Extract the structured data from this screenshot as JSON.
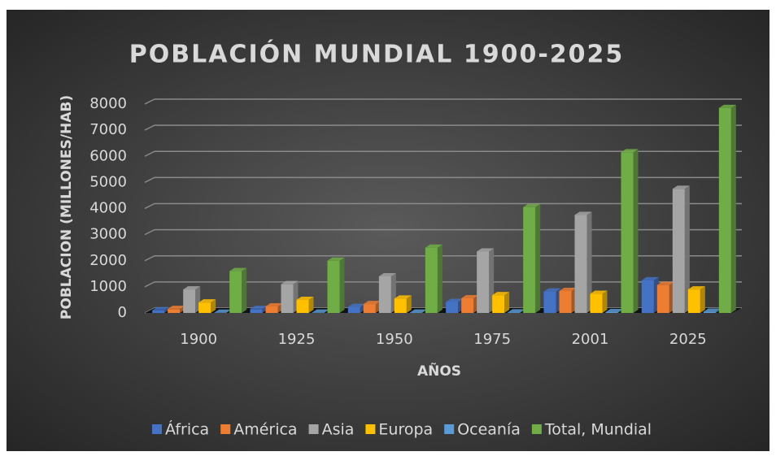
{
  "chart_data": {
    "type": "bar3d",
    "title": "POBLACIÓN MUNDIAL 1900-2025",
    "y_label": "POBLACION (MILLONES/HAB)",
    "x_label": "AÑOS",
    "categories": [
      "1900",
      "1925",
      "1950",
      "1975",
      "2001",
      "2025"
    ],
    "series": [
      {
        "name": "África",
        "color": "#4472c4",
        "values": [
          100,
          150,
          230,
          420,
          820,
          1250
        ]
      },
      {
        "name": "América",
        "color": "#ed7d31",
        "values": [
          150,
          250,
          340,
          560,
          840,
          1070
        ]
      },
      {
        "name": "Asia",
        "color": "#a5a5a5",
        "values": [
          900,
          1100,
          1400,
          2350,
          3750,
          4750
        ]
      },
      {
        "name": "Europa",
        "color": "#ffc000",
        "values": [
          400,
          500,
          550,
          680,
          730,
          900
        ]
      },
      {
        "name": "Oceanía",
        "color": "#5b9bd5",
        "values": [
          6,
          10,
          13,
          21,
          31,
          45
        ]
      },
      {
        "name": "Total, Mundial",
        "color": "#70ad47",
        "values": [
          1600,
          2000,
          2500,
          4050,
          6150,
          7850
        ]
      }
    ],
    "ylim": [
      0,
      8000
    ],
    "yticks": [
      0,
      1000,
      2000,
      3000,
      4000,
      5000,
      6000,
      7000,
      8000
    ],
    "grid": true,
    "legend": "bottom"
  }
}
